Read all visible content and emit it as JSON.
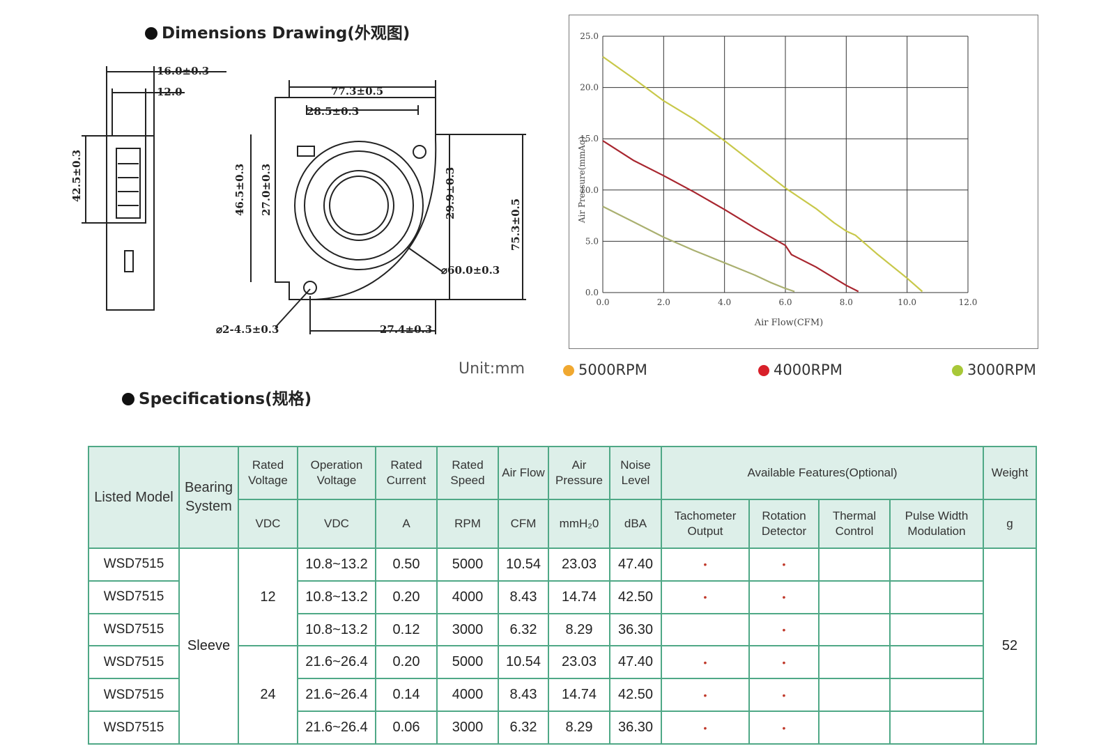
{
  "dimensions": {
    "title": "Dimensions Drawing(外观图)",
    "labels": {
      "side_width": "16.0±0.3",
      "side_inner": "12.0",
      "side_height": "42.5±0.3",
      "overall_width": "77.3±0.5",
      "outlet": "28.5±0.3",
      "h1": "46.5±0.3",
      "h2": "27.0±0.3",
      "h3": "29.9±0.3",
      "overall_height": "75.3±0.5",
      "diameter": "⌀60.0±0.3",
      "hole": "⌀2-4.5±0.3",
      "bottom": "27.4±0.3"
    },
    "unit": "Unit:mm"
  },
  "chart_data": {
    "type": "line",
    "xlabel": "Air Flow(CFM)",
    "ylabel": "Air Pressure(mmAq)",
    "xlim": [
      0,
      12
    ],
    "ylim": [
      0,
      25
    ],
    "xticks": [
      "0.0",
      "2.0",
      "4.0",
      "6.0",
      "8.0",
      "10.0",
      "12.0"
    ],
    "yticks": [
      "0.0",
      "5.0",
      "10.0",
      "15.0",
      "20.0",
      "25.0"
    ],
    "grid": true,
    "series": [
      {
        "name": "5000RPM",
        "color": "#c8c84a",
        "x": [
          0,
          1,
          2,
          3,
          4,
          5,
          6,
          7,
          7.6,
          8,
          8.3,
          9,
          10,
          10.5
        ],
        "y": [
          23.0,
          20.9,
          18.7,
          16.9,
          14.8,
          12.5,
          10.2,
          8.2,
          6.8,
          6.0,
          5.6,
          3.8,
          1.4,
          0.1
        ]
      },
      {
        "name": "4000RPM",
        "color": "#a8262f",
        "x": [
          0,
          1,
          2,
          3,
          4,
          5,
          6,
          6.2,
          7,
          7.5,
          8,
          8.4
        ],
        "y": [
          14.8,
          12.9,
          11.4,
          9.8,
          8.1,
          6.3,
          4.6,
          3.7,
          2.5,
          1.6,
          0.7,
          0.1
        ]
      },
      {
        "name": "3000RPM",
        "color": "#aab070",
        "x": [
          0,
          1,
          2,
          3,
          4,
          4.5,
          5,
          5.5,
          6,
          6.3
        ],
        "y": [
          8.4,
          6.9,
          5.4,
          4.1,
          2.9,
          2.3,
          1.7,
          1.0,
          0.4,
          0.1
        ]
      }
    ]
  },
  "legend": [
    {
      "label": "5000RPM",
      "color": "#f0a830"
    },
    {
      "label": "4000RPM",
      "color": "#d8202a"
    },
    {
      "label": "3000RPM",
      "color": "#a8c838"
    }
  ],
  "specifications": {
    "title": "Specifications(规格)",
    "headers": {
      "listed_model": "Listed Model",
      "bearing_system": "Bearing System",
      "rated_voltage": "Rated Voltage",
      "operation_voltage": "Operation Voltage",
      "rated_current": "Rated Current",
      "rated_speed": "Rated Speed",
      "air_flow": "Air Flow",
      "air_pressure": "Air Pressure",
      "noise_level": "Noise Level",
      "available_features": "Available Features(Optional)",
      "weight": "Weight"
    },
    "units": {
      "rated_voltage": "VDC",
      "operation_voltage": "VDC",
      "rated_current": "A",
      "rated_speed": "RPM",
      "air_flow": "CFM",
      "air_pressure": "mmH₂0",
      "noise_level": "dBA",
      "weight": "g"
    },
    "feature_headers": {
      "tachometer": "Tachometer Output",
      "rotation": "Rotation Detector",
      "thermal": "Thermal Control",
      "pwm": "Pulse Width Modulation"
    },
    "bearing": "Sleeve",
    "voltage_12": "12",
    "voltage_24": "24",
    "weight_value": "52",
    "bullet": "•",
    "rows": [
      {
        "model": "WSD7515",
        "op_voltage": "10.8~13.2",
        "current": "0.50",
        "speed": "5000",
        "flow": "10.54",
        "pressure": "23.03",
        "noise": "47.40",
        "tach": "•",
        "rot": "•",
        "thermal": "",
        "pwm": ""
      },
      {
        "model": "WSD7515",
        "op_voltage": "10.8~13.2",
        "current": "0.20",
        "speed": "4000",
        "flow": "8.43",
        "pressure": "14.74",
        "noise": "42.50",
        "tach": "•",
        "rot": "•",
        "thermal": "",
        "pwm": ""
      },
      {
        "model": "WSD7515",
        "op_voltage": "10.8~13.2",
        "current": "0.12",
        "speed": "3000",
        "flow": "6.32",
        "pressure": "8.29",
        "noise": "36.30",
        "tach": "",
        "rot": "•",
        "thermal": "",
        "pwm": ""
      },
      {
        "model": "WSD7515",
        "op_voltage": "21.6~26.4",
        "current": "0.20",
        "speed": "5000",
        "flow": "10.54",
        "pressure": "23.03",
        "noise": "47.40",
        "tach": "•",
        "rot": "•",
        "thermal": "",
        "pwm": ""
      },
      {
        "model": "WSD7515",
        "op_voltage": "21.6~26.4",
        "current": "0.14",
        "speed": "4000",
        "flow": "8.43",
        "pressure": "14.74",
        "noise": "42.50",
        "tach": "•",
        "rot": "•",
        "thermal": "",
        "pwm": ""
      },
      {
        "model": "WSD7515",
        "op_voltage": "21.6~26.4",
        "current": "0.06",
        "speed": "3000",
        "flow": "6.32",
        "pressure": "8.29",
        "noise": "36.30",
        "tach": "•",
        "rot": "•",
        "thermal": "",
        "pwm": ""
      }
    ]
  }
}
